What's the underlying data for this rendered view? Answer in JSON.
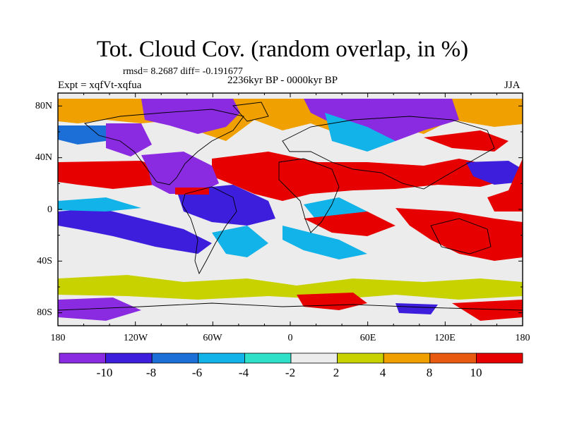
{
  "title": "Tot. Cloud Cov. (random overlap, in %)",
  "stats": "rmsd= 8.2687 diff= -0.191677",
  "experiment": "Expt = xqfVt-xqfua",
  "period": "2236kyr BP - 0000kyr BP",
  "season": "JJA",
  "lat_ticks": [
    "80N",
    "40N",
    "0",
    "40S",
    "80S"
  ],
  "lon_ticks": [
    "180",
    "120W",
    "60W",
    "0",
    "60E",
    "120E",
    "180"
  ],
  "colorbar": {
    "labels": [
      "-10",
      "-8",
      "-6",
      "-4",
      "-2",
      "2",
      "4",
      "8",
      "10"
    ],
    "colors": [
      "#8a2be2",
      "#3c1edc",
      "#1b6fd6",
      "#12b3e8",
      "#2ee0c8",
      "#ececec",
      "#c8d200",
      "#f0a000",
      "#e85a10",
      "#e60000"
    ]
  },
  "chart_data": {
    "type": "heatmap",
    "x_axis": "longitude",
    "y_axis": "latitude",
    "xlim": [
      -180,
      180
    ],
    "ylim": [
      -90,
      90
    ],
    "levels": [
      -10,
      -8,
      -6,
      -4,
      -2,
      2,
      4,
      8,
      10
    ],
    "approx_fields": [
      {
        "region": "Arctic Russia/Siberia",
        "value": -10
      },
      {
        "region": "N. America high latitudes",
        "value": -10
      },
      {
        "region": "N. Pacific ~30N",
        "value": 10
      },
      {
        "region": "N. Atlantic/Sahara band ~20N",
        "value": 10
      },
      {
        "region": "Equatorial Atlantic/Amazon",
        "value": -10
      },
      {
        "region": "Indian Ocean/Australia ~20S",
        "value": 10
      },
      {
        "region": "S. Pacific ~20S",
        "value": -8
      },
      {
        "region": "Southern Ocean",
        "value": 4
      }
    ]
  }
}
